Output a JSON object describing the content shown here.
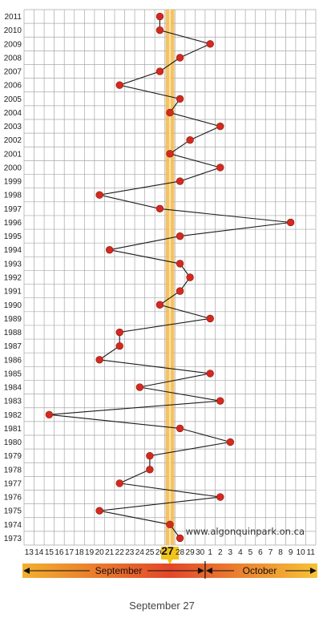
{
  "chart_data": {
    "type": "line",
    "caption": "September 27",
    "watermark": "www.algonquinpark.on.ca",
    "highlight_label": "27",
    "month_labels": [
      "September",
      "October"
    ],
    "x_tick_labels": [
      "13",
      "14",
      "15",
      "16",
      "17",
      "18",
      "19",
      "20",
      "21",
      "22",
      "23",
      "24",
      "25",
      "26",
      "27",
      "28",
      "29",
      "30",
      "1",
      "2",
      "3",
      "4",
      "5",
      "6",
      "7",
      "8",
      "9",
      "10",
      "11"
    ],
    "y_range": [
      1973,
      2011
    ],
    "highlight_tick": "27",
    "colors": {
      "point": "#d42a1e",
      "line": "#1a1a1a",
      "highlight_band": "#f3b94a",
      "grid": "#a8a8a8",
      "banner_start": "#f2b02f",
      "banner_mid": "#e2472a",
      "banner_end": "#f6c236"
    },
    "points": [
      {
        "year": 2011,
        "date": "Sep 26"
      },
      {
        "year": 2010,
        "date": "Sep 26"
      },
      {
        "year": 2009,
        "date": "Oct 1"
      },
      {
        "year": 2008,
        "date": "Sep 28"
      },
      {
        "year": 2007,
        "date": "Sep 26"
      },
      {
        "year": 2006,
        "date": "Sep 22"
      },
      {
        "year": 2005,
        "date": "Sep 28"
      },
      {
        "year": 2004,
        "date": "Sep 27"
      },
      {
        "year": 2003,
        "date": "Oct 2"
      },
      {
        "year": 2002,
        "date": "Sep 29"
      },
      {
        "year": 2001,
        "date": "Sep 27"
      },
      {
        "year": 2000,
        "date": "Oct 2"
      },
      {
        "year": 1999,
        "date": "Sep 28"
      },
      {
        "year": 1998,
        "date": "Sep 20"
      },
      {
        "year": 1997,
        "date": "Sep 26"
      },
      {
        "year": 1996,
        "date": "Oct 9"
      },
      {
        "year": 1995,
        "date": "Sep 28"
      },
      {
        "year": 1994,
        "date": "Sep 21"
      },
      {
        "year": 1993,
        "date": "Sep 28"
      },
      {
        "year": 1992,
        "date": "Sep 29"
      },
      {
        "year": 1991,
        "date": "Sep 28"
      },
      {
        "year": 1990,
        "date": "Sep 26"
      },
      {
        "year": 1989,
        "date": "Oct 1"
      },
      {
        "year": 1988,
        "date": "Sep 22"
      },
      {
        "year": 1987,
        "date": "Sep 22"
      },
      {
        "year": 1986,
        "date": "Sep 20"
      },
      {
        "year": 1985,
        "date": "Oct 1"
      },
      {
        "year": 1984,
        "date": "Sep 24"
      },
      {
        "year": 1983,
        "date": "Oct 2"
      },
      {
        "year": 1982,
        "date": "Sep 15"
      },
      {
        "year": 1981,
        "date": "Sep 28"
      },
      {
        "year": 1980,
        "date": "Oct 3"
      },
      {
        "year": 1979,
        "date": "Sep 25"
      },
      {
        "year": 1978,
        "date": "Sep 25"
      },
      {
        "year": 1977,
        "date": "Sep 22"
      },
      {
        "year": 1976,
        "date": "Oct 2"
      },
      {
        "year": 1975,
        "date": "Sep 20"
      },
      {
        "year": 1974,
        "date": "Sep 27"
      },
      {
        "year": 1973,
        "date": "Sep 28"
      }
    ]
  }
}
